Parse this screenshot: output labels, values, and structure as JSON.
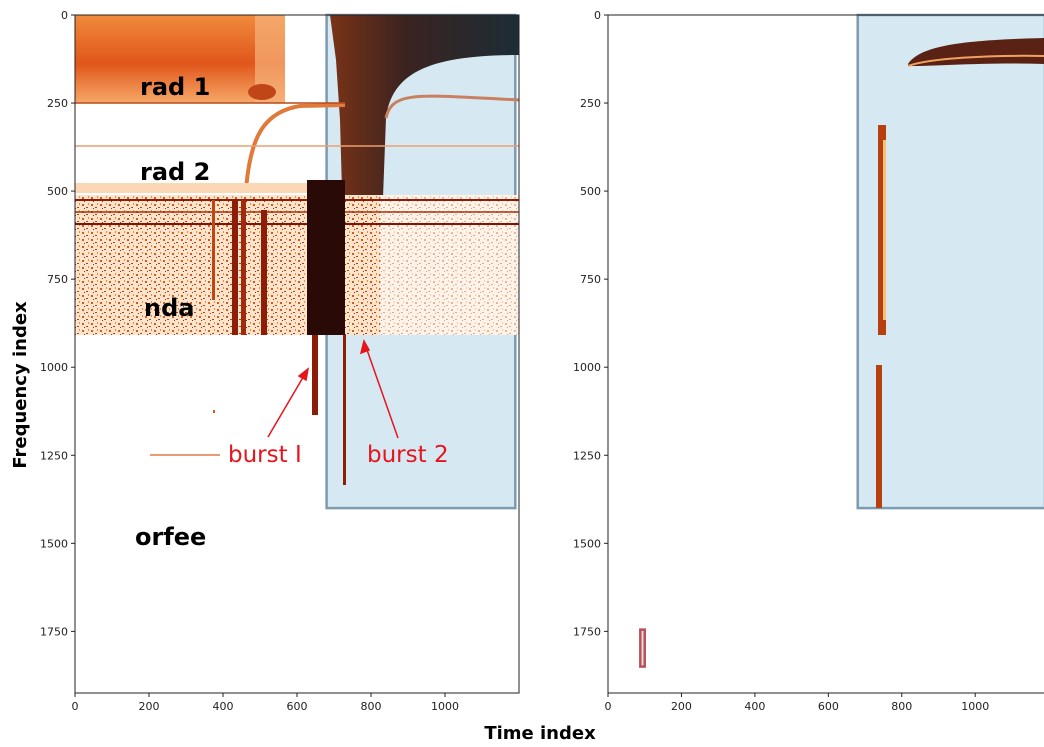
{
  "xlabel": "Time index",
  "chart_data": [
    {
      "type": "image",
      "ylabel": "Frequency index",
      "xlim": [
        0,
        1200
      ],
      "ylim": [
        1925,
        0
      ],
      "xticks": [
        0,
        200,
        400,
        600,
        800,
        1000
      ],
      "yticks": [
        0,
        250,
        500,
        750,
        1000,
        1250,
        1500,
        1750
      ],
      "regions": [
        {
          "x": [
            680,
            1190
          ],
          "y": [
            0,
            1400
          ],
          "color": "#d6e9f2",
          "edgecolor": "#7d9bb0"
        }
      ],
      "annotations": [
        "rad 1",
        "rad 2",
        "nda",
        "orfee",
        "burst I",
        "burst 2"
      ]
    },
    {
      "type": "image",
      "xlim": [
        0,
        1190
      ],
      "ylim": [
        1925,
        0
      ],
      "xticks": [
        0,
        200,
        400,
        600,
        800,
        1000
      ],
      "yticks": [
        0,
        250,
        500,
        750,
        1000,
        1250,
        1500,
        1750
      ],
      "regions": [
        {
          "x": [
            680,
            1190
          ],
          "y": [
            0,
            1400
          ],
          "color": "#d6e9f2",
          "edgecolor": "#7d9bb0"
        },
        {
          "x": [
            88,
            100
          ],
          "y": [
            1745,
            1850
          ],
          "color": "#f6dcd8",
          "edgecolor": "#b5525a"
        }
      ]
    }
  ]
}
